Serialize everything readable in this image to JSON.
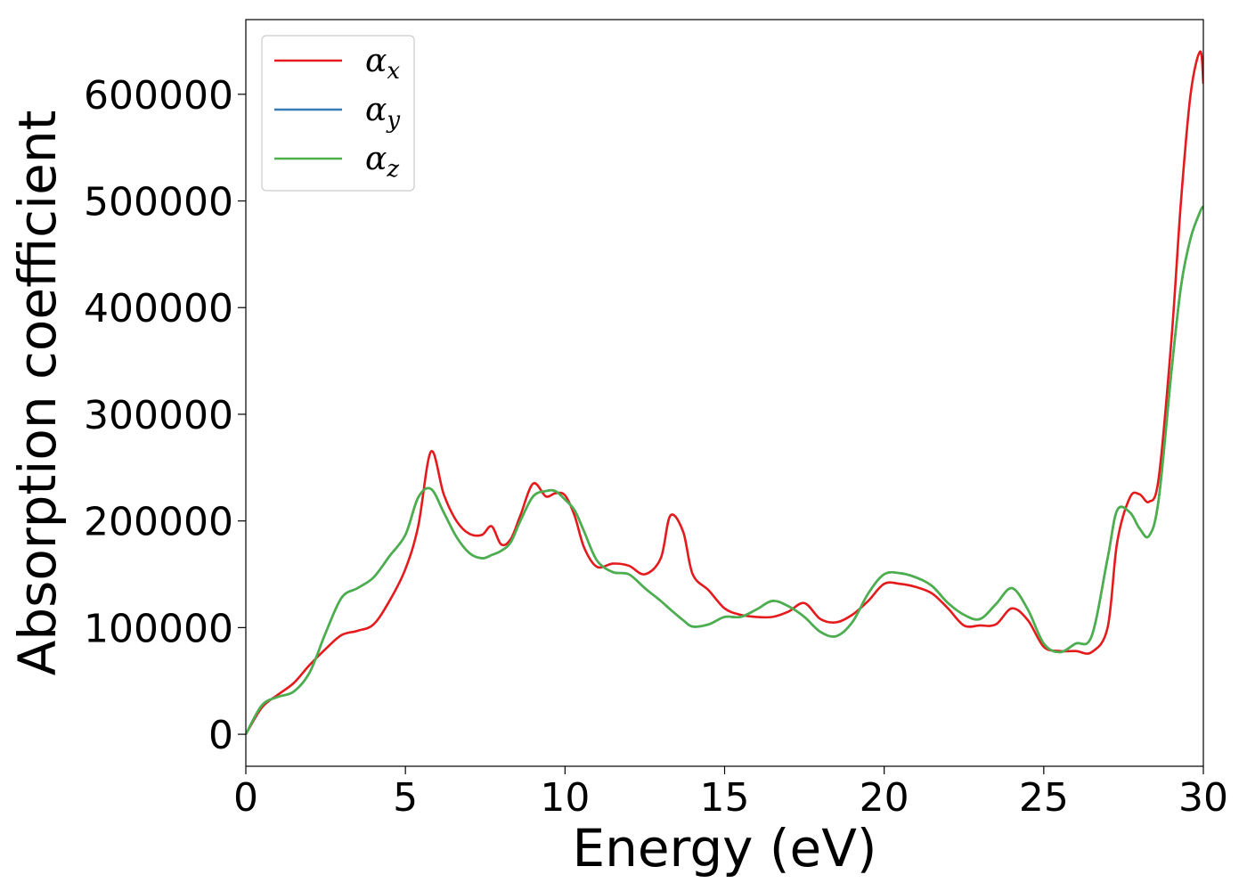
{
  "chart_data": {
    "type": "line",
    "xlabel": "Energy (eV)",
    "ylabel": "Absorption coefficient",
    "xlim": [
      0,
      30
    ],
    "ylim": [
      -30000,
      670000
    ],
    "xticks": [
      "0",
      "5",
      "10",
      "15",
      "20",
      "25",
      "30"
    ],
    "yticks": [
      "0",
      "100000",
      "200000",
      "300000",
      "400000",
      "500000",
      "600000"
    ],
    "grid": false,
    "legend": "top-left",
    "series": [
      {
        "name": "α_x",
        "symbol": "α",
        "sub": "x",
        "color": "#e41a1c",
        "x": [
          0,
          0.5,
          1,
          1.5,
          2,
          2.5,
          3,
          3.5,
          4,
          4.5,
          5,
          5.4,
          5.8,
          6.2,
          6.6,
          7,
          7.4,
          7.7,
          8,
          8.3,
          8.6,
          9,
          9.4,
          9.7,
          10,
          10.3,
          10.6,
          11,
          11.5,
          12,
          12.5,
          13,
          13.3,
          13.7,
          14,
          14.5,
          15,
          15.5,
          16,
          16.5,
          17,
          17.5,
          18,
          18.5,
          19,
          19.5,
          20,
          20.5,
          21,
          21.5,
          22,
          22.5,
          23,
          23.5,
          24,
          24.5,
          25,
          25.5,
          26,
          26.5,
          27,
          27.3,
          27.7,
          28,
          28.3,
          28.6,
          29,
          29.3,
          29.6,
          29.9,
          30
        ],
        "y": [
          0,
          25000,
          37000,
          48000,
          65000,
          80000,
          93000,
          97000,
          103000,
          125000,
          155000,
          195000,
          265000,
          225000,
          200000,
          188000,
          187000,
          195000,
          178000,
          183000,
          205000,
          235000,
          223000,
          226000,
          224000,
          205000,
          175000,
          157000,
          160000,
          158000,
          150000,
          165000,
          205000,
          190000,
          150000,
          135000,
          118000,
          112000,
          110000,
          110000,
          115000,
          123000,
          108000,
          105000,
          112000,
          125000,
          141000,
          141000,
          138000,
          132000,
          118000,
          102000,
          102000,
          103000,
          118000,
          107000,
          82000,
          78000,
          78000,
          77000,
          100000,
          180000,
          222000,
          225000,
          218000,
          240000,
          370000,
          500000,
          600000,
          640000,
          610000
        ]
      },
      {
        "name": "α_y",
        "symbol": "α",
        "sub": "y",
        "color": "#377eb8",
        "x": [
          0,
          0.5,
          1,
          1.5,
          2,
          2.5,
          3,
          3.5,
          4,
          4.5,
          5,
          5.4,
          5.8,
          6.2,
          6.6,
          7,
          7.4,
          7.7,
          8,
          8.3,
          8.6,
          9,
          9.4,
          9.7,
          10,
          10.3,
          10.6,
          11,
          11.5,
          12,
          12.5,
          13,
          13.3,
          13.7,
          14,
          14.5,
          15,
          15.5,
          16,
          16.5,
          17,
          17.5,
          18,
          18.5,
          19,
          19.5,
          20,
          20.5,
          21,
          21.5,
          22,
          22.5,
          23,
          23.5,
          24,
          24.5,
          25,
          25.5,
          26,
          26.5,
          27,
          27.3,
          27.7,
          28,
          28.3,
          28.6,
          29,
          29.3,
          29.6,
          29.9,
          30
        ],
        "y": [
          0,
          27000,
          35000,
          40000,
          58000,
          95000,
          128000,
          137000,
          147000,
          167000,
          187000,
          222000,
          230000,
          208000,
          185000,
          170000,
          165000,
          168000,
          172000,
          180000,
          200000,
          223000,
          228000,
          228000,
          220000,
          210000,
          190000,
          163000,
          152000,
          150000,
          137000,
          125000,
          117000,
          107000,
          101000,
          103000,
          110000,
          110000,
          117000,
          125000,
          120000,
          110000,
          96000,
          92000,
          105000,
          132000,
          150000,
          151000,
          147000,
          139000,
          123000,
          112000,
          108000,
          122000,
          137000,
          117000,
          85000,
          77000,
          85000,
          92000,
          165000,
          210000,
          208000,
          193000,
          186000,
          220000,
          340000,
          420000,
          465000,
          490000,
          495000
        ]
      },
      {
        "name": "α_z",
        "symbol": "α",
        "sub": "z",
        "color": "#4daf4a",
        "x": [
          0,
          0.5,
          1,
          1.5,
          2,
          2.5,
          3,
          3.5,
          4,
          4.5,
          5,
          5.4,
          5.8,
          6.2,
          6.6,
          7,
          7.4,
          7.7,
          8,
          8.3,
          8.6,
          9,
          9.4,
          9.7,
          10,
          10.3,
          10.6,
          11,
          11.5,
          12,
          12.5,
          13,
          13.3,
          13.7,
          14,
          14.5,
          15,
          15.5,
          16,
          16.5,
          17,
          17.5,
          18,
          18.5,
          19,
          19.5,
          20,
          20.5,
          21,
          21.5,
          22,
          22.5,
          23,
          23.5,
          24,
          24.5,
          25,
          25.5,
          26,
          26.5,
          27,
          27.3,
          27.7,
          28,
          28.3,
          28.6,
          29,
          29.3,
          29.6,
          29.9,
          30
        ],
        "y": [
          0,
          27000,
          35000,
          40000,
          58000,
          95000,
          128000,
          137000,
          147000,
          167000,
          187000,
          222000,
          230000,
          208000,
          185000,
          170000,
          165000,
          168000,
          172000,
          180000,
          200000,
          223000,
          228000,
          228000,
          220000,
          210000,
          190000,
          163000,
          152000,
          150000,
          137000,
          125000,
          117000,
          107000,
          101000,
          103000,
          110000,
          110000,
          117000,
          125000,
          120000,
          110000,
          96000,
          92000,
          105000,
          132000,
          150000,
          151000,
          147000,
          139000,
          123000,
          112000,
          108000,
          122000,
          137000,
          117000,
          85000,
          77000,
          85000,
          92000,
          165000,
          210000,
          208000,
          193000,
          186000,
          220000,
          340000,
          420000,
          465000,
          490000,
          495000
        ]
      }
    ]
  }
}
